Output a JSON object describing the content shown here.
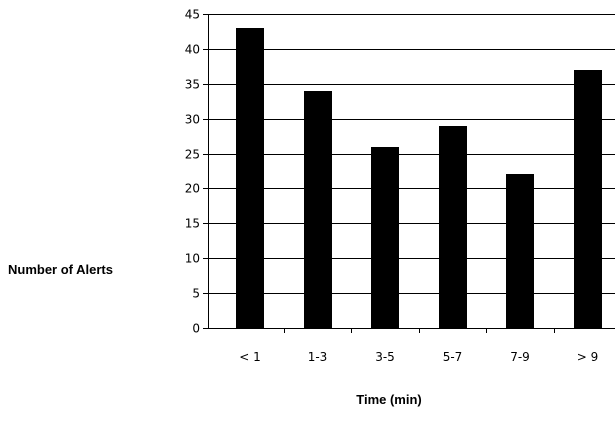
{
  "chart_data": {
    "type": "bar",
    "title": "",
    "xlabel": "Time (min)",
    "ylabel": "Number of Alerts",
    "categories": [
      "< 1",
      "1-3",
      "3-5",
      "5-7",
      "7-9",
      "> 9"
    ],
    "values": [
      43,
      34,
      26,
      29,
      22,
      37
    ],
    "ylim": [
      0,
      45
    ],
    "yticks": [
      0,
      5,
      10,
      15,
      20,
      25,
      30,
      35,
      40,
      45
    ],
    "grid": "horizontal",
    "bar_color": "#000000"
  }
}
